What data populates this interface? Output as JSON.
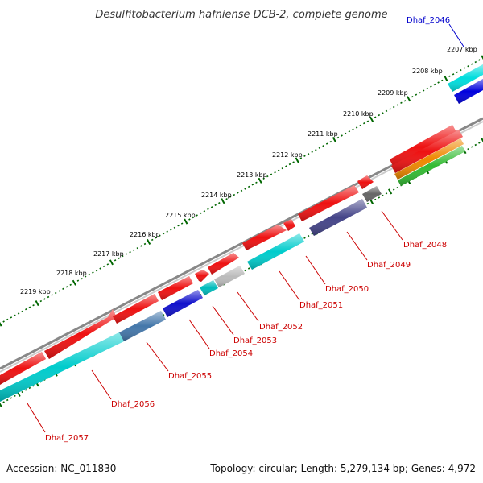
{
  "title": "Desulfitobacterium hafniense DCB-2, complete genome",
  "footer": {
    "accession": "Accession: NC_011830",
    "stats": "Topology: circular; Length: 5,279,134 bp; Genes: 4,972"
  },
  "colors": {
    "label_red": "#cc0000",
    "label_blue": "#0000cc",
    "ticks": "#006600",
    "backbone": "#888888"
  },
  "kbp_labels": [
    "2207 kbp",
    "2208 kbp",
    "2209 kbp",
    "2210 kbp",
    "2211 kbp",
    "2212 kbp",
    "2213 kbp",
    "2214 kbp",
    "2215 kbp",
    "2216 kbp",
    "2217 kbp",
    "2218 kbp",
    "2219 kbp"
  ],
  "gene_labels": [
    {
      "text": "Dhaf_2046",
      "color": "blue"
    },
    {
      "text": "Dhaf_2048",
      "color": "red"
    },
    {
      "text": "Dhaf_2049",
      "color": "red"
    },
    {
      "text": "Dhaf_2050",
      "color": "red"
    },
    {
      "text": "Dhaf_2051",
      "color": "red"
    },
    {
      "text": "Dhaf_2052",
      "color": "red"
    },
    {
      "text": "Dhaf_2053",
      "color": "red"
    },
    {
      "text": "Dhaf_2054",
      "color": "red"
    },
    {
      "text": "Dhaf_2055",
      "color": "red"
    },
    {
      "text": "Dhaf_2056",
      "color": "red"
    },
    {
      "text": "Dhaf_2057",
      "color": "red"
    }
  ],
  "segments": [
    {
      "name": "outer-red-1",
      "color": "#ee1111"
    },
    {
      "name": "outer-red-2",
      "color": "#ee1111"
    },
    {
      "name": "outer-red-3",
      "color": "#ee1111"
    },
    {
      "name": "outer-red-4",
      "color": "#ee1111"
    },
    {
      "name": "outer-red-5",
      "color": "#ee1111"
    },
    {
      "name": "outer-red-6",
      "color": "#ee1111"
    },
    {
      "name": "outer-red-7",
      "color": "#ee1111"
    },
    {
      "name": "outer-red-8",
      "color": "#ee1111"
    },
    {
      "name": "outer-red-9",
      "color": "#ee1111"
    },
    {
      "name": "outer-red-10",
      "color": "#ee1111"
    },
    {
      "name": "outer-red-11",
      "color": "#ee1111"
    },
    {
      "name": "inner-cyan-1",
      "color": "#00cccc"
    },
    {
      "name": "inner-steelblue",
      "color": "#4477aa"
    },
    {
      "name": "inner-blue-1",
      "color": "#1111cc"
    },
    {
      "name": "inner-cyan-2",
      "color": "#00bbbb"
    },
    {
      "name": "inner-grey-light",
      "color": "#bbbbbb"
    },
    {
      "name": "inner-cyan-3",
      "color": "#00cccc"
    },
    {
      "name": "inner-slate",
      "color": "#444488"
    },
    {
      "name": "inner-grey-dark",
      "color": "#666666"
    },
    {
      "name": "far-red",
      "color": "#ee1111"
    },
    {
      "name": "far-orange",
      "color": "#ee8800"
    },
    {
      "name": "far-green",
      "color": "#33bb33"
    },
    {
      "name": "top-cyan",
      "color": "#00dddd"
    },
    {
      "name": "top-blue",
      "color": "#0000dd"
    }
  ]
}
